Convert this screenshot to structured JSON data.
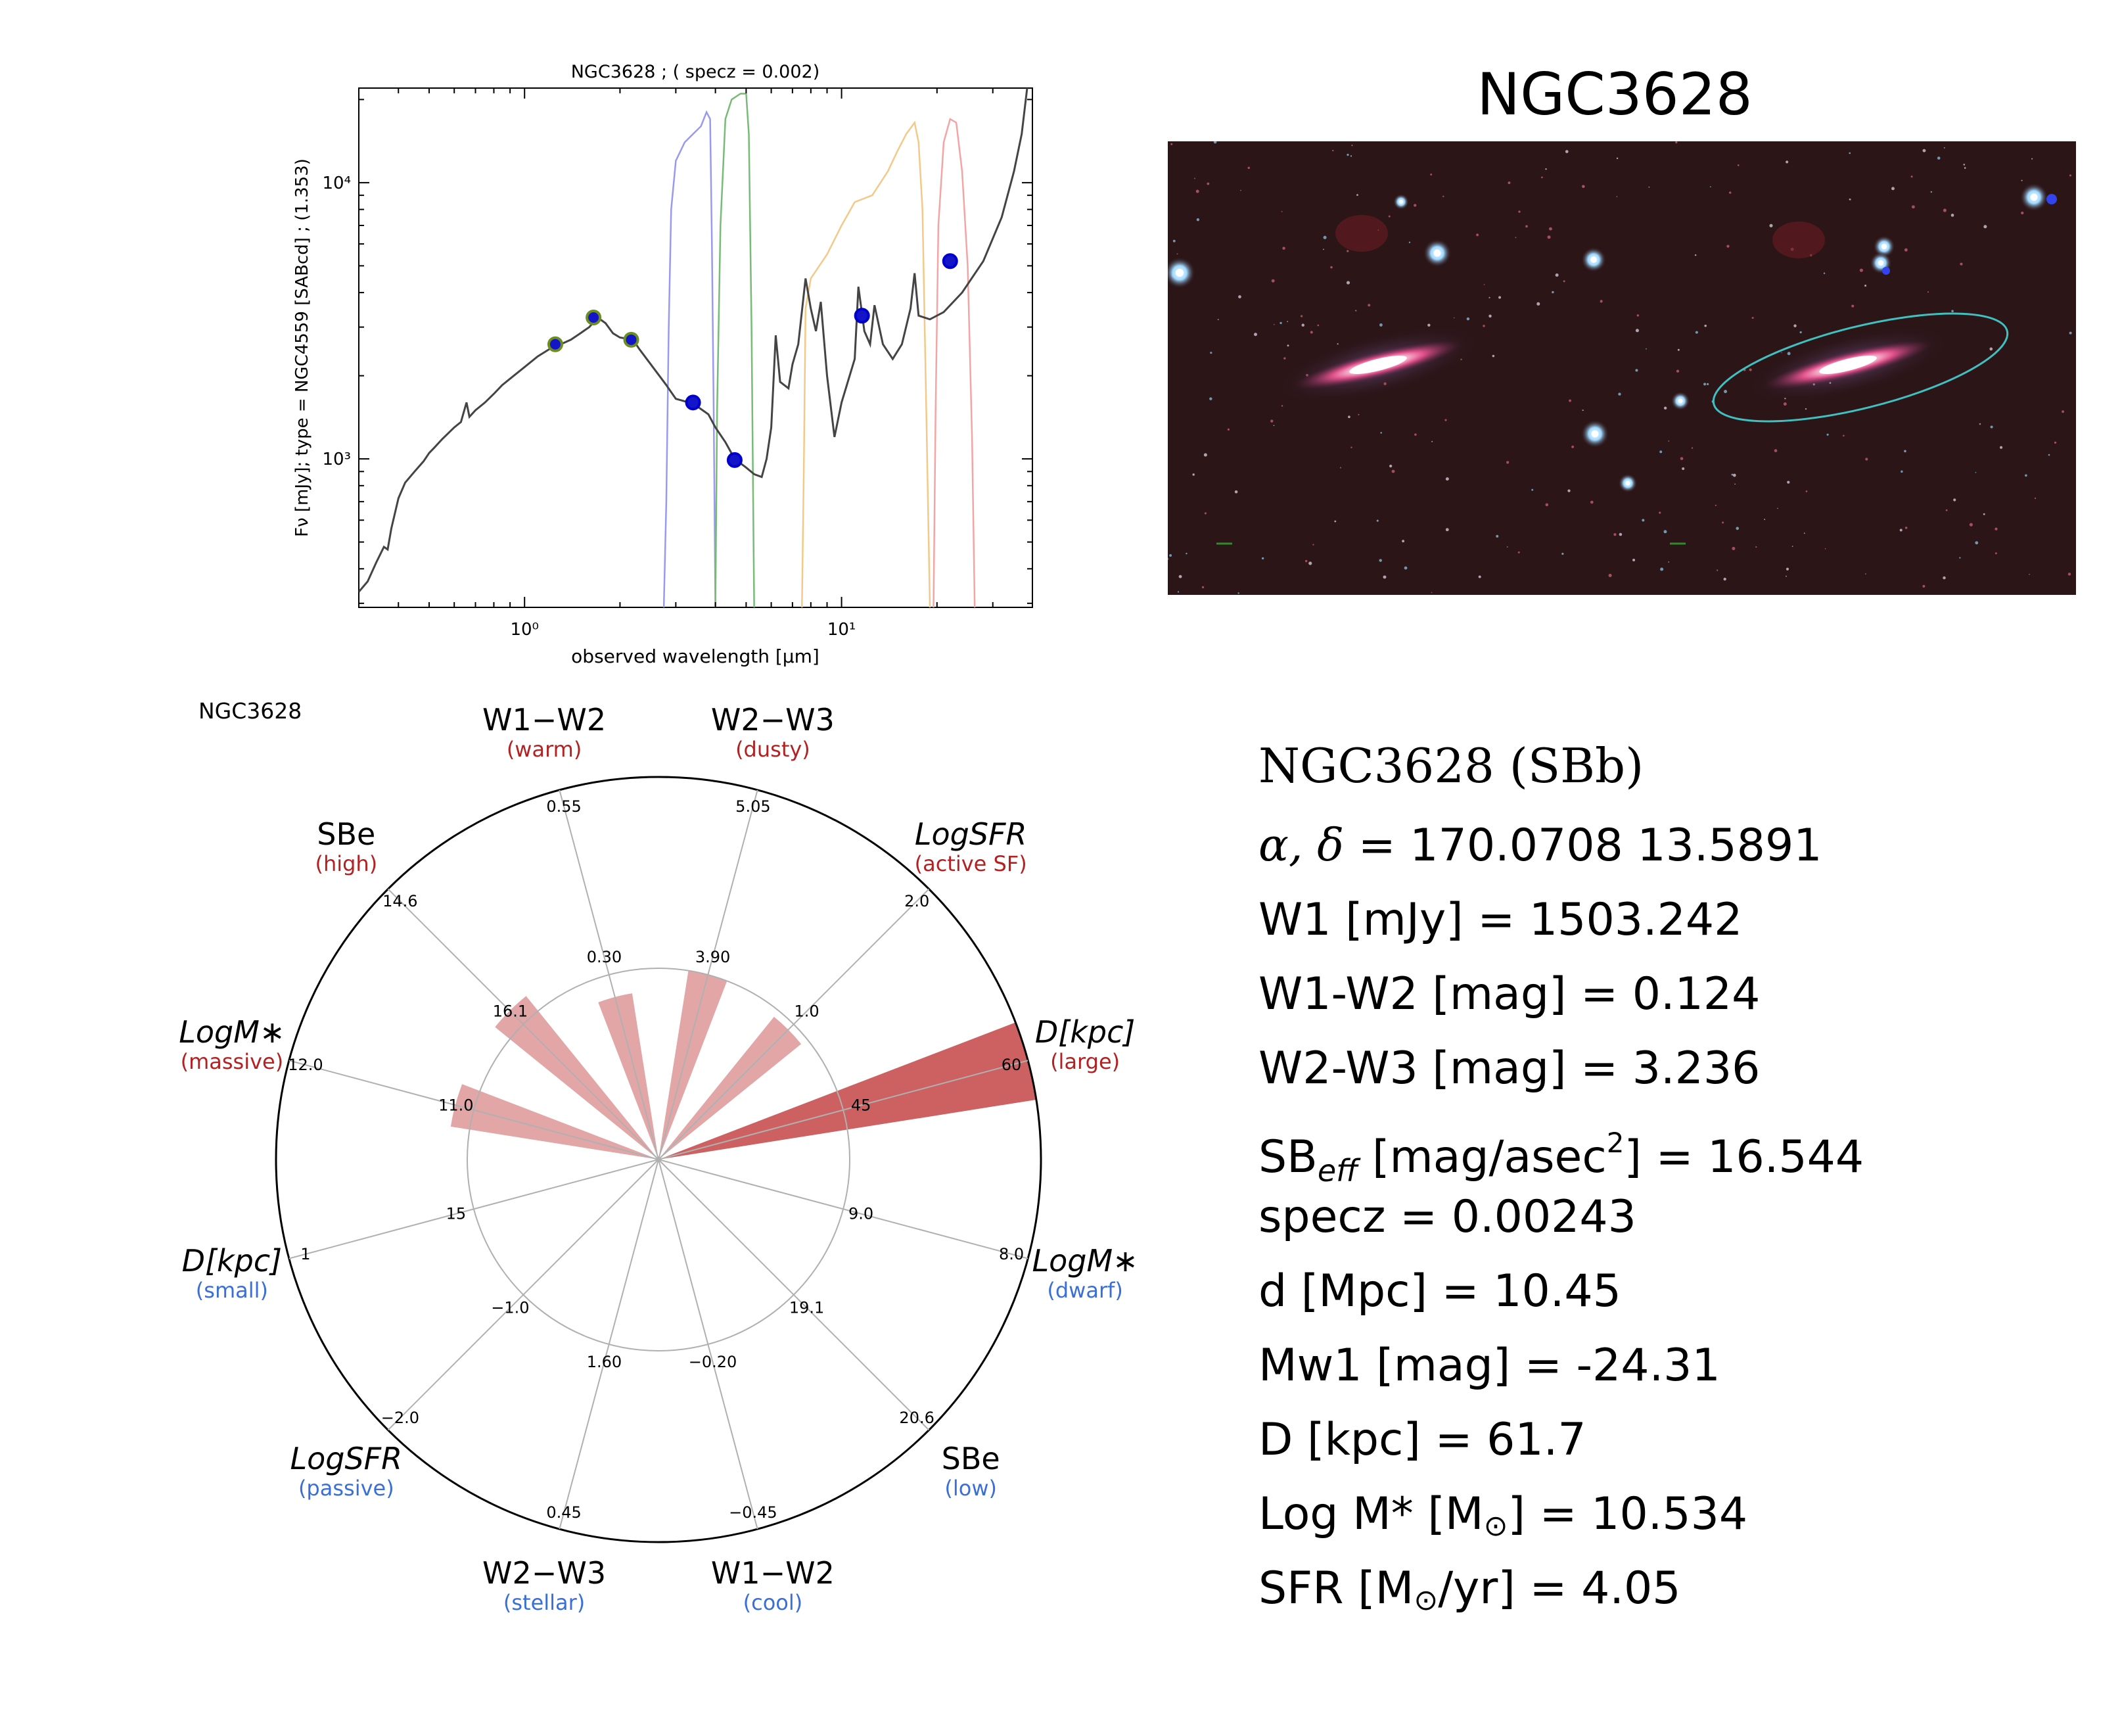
{
  "chart_data": [
    {
      "type": "line",
      "title": "NGC3628 ; ( specz = 0.002)",
      "xlabel": "observed wavelength [μm]",
      "ylabel": "Fν [mJy];  type = NGC4559 [SABcd] ; (1.353)",
      "xscale": "log",
      "yscale": "log",
      "xlim": [
        0.3,
        40
      ],
      "ylim": [
        290,
        22000
      ],
      "x_tick_labels": [
        {
          "x": 1,
          "label": "10⁰"
        },
        {
          "x": 10,
          "label": "10¹"
        }
      ],
      "y_tick_labels": [
        {
          "y": 1000,
          "label": "10³"
        },
        {
          "y": 10000,
          "label": "10⁴"
        }
      ],
      "series": [
        {
          "role": "template",
          "color": "#444444",
          "points": [
            [
              0.3,
              330
            ],
            [
              0.32,
              360
            ],
            [
              0.34,
              420
            ],
            [
              0.36,
              480
            ],
            [
              0.37,
              470
            ],
            [
              0.38,
              560
            ],
            [
              0.4,
              720
            ],
            [
              0.42,
              820
            ],
            [
              0.45,
              900
            ],
            [
              0.48,
              980
            ],
            [
              0.5,
              1050
            ],
            [
              0.52,
              1100
            ],
            [
              0.55,
              1180
            ],
            [
              0.6,
              1300
            ],
            [
              0.63,
              1360
            ],
            [
              0.656,
              1600
            ],
            [
              0.67,
              1420
            ],
            [
              0.7,
              1500
            ],
            [
              0.75,
              1600
            ],
            [
              0.8,
              1720
            ],
            [
              0.85,
              1850
            ],
            [
              0.9,
              1950
            ],
            [
              1.0,
              2150
            ],
            [
              1.1,
              2350
            ],
            [
              1.2,
              2500
            ],
            [
              1.3,
              2600
            ],
            [
              1.4,
              2700
            ],
            [
              1.5,
              2850
            ],
            [
              1.6,
              3000
            ],
            [
              1.7,
              3250
            ],
            [
              1.8,
              3100
            ],
            [
              1.9,
              2850
            ],
            [
              2.0,
              2750
            ],
            [
              2.2,
              2700
            ],
            [
              2.3,
              2500
            ],
            [
              2.5,
              2200
            ],
            [
              2.8,
              1850
            ],
            [
              3.0,
              1650
            ],
            [
              3.3,
              1600
            ],
            [
              3.5,
              1550
            ],
            [
              3.8,
              1450
            ],
            [
              4.0,
              1300
            ],
            [
              4.3,
              1150
            ],
            [
              4.6,
              1000
            ],
            [
              5.0,
              930
            ],
            [
              5.3,
              880
            ],
            [
              5.6,
              860
            ],
            [
              5.8,
              1000
            ],
            [
              6.0,
              1300
            ],
            [
              6.2,
              2800
            ],
            [
              6.4,
              1900
            ],
            [
              6.8,
              1800
            ],
            [
              7.0,
              2200
            ],
            [
              7.3,
              2600
            ],
            [
              7.7,
              4500
            ],
            [
              8.0,
              3500
            ],
            [
              8.3,
              2900
            ],
            [
              8.6,
              3700
            ],
            [
              9.0,
              2000
            ],
            [
              9.5,
              1200
            ],
            [
              10.0,
              1600
            ],
            [
              11.0,
              2300
            ],
            [
              11.3,
              4200
            ],
            [
              11.8,
              2900
            ],
            [
              12.3,
              2600
            ],
            [
              12.7,
              3600
            ],
            [
              13.5,
              2600
            ],
            [
              14.5,
              2300
            ],
            [
              15.5,
              2600
            ],
            [
              16.5,
              3500
            ],
            [
              17.0,
              4700
            ],
            [
              17.5,
              3300
            ],
            [
              19.0,
              3200
            ],
            [
              21.0,
              3400
            ],
            [
              24.0,
              4000
            ],
            [
              28.0,
              5200
            ],
            [
              32.0,
              7500
            ],
            [
              35.0,
              11000
            ],
            [
              37.0,
              15000
            ],
            [
              38.5,
              22000
            ]
          ]
        },
        {
          "role": "filter W1",
          "color": "#9999ee",
          "points": [
            [
              2.75,
              290
            ],
            [
              2.8,
              700
            ],
            [
              2.85,
              3000
            ],
            [
              2.9,
              8000
            ],
            [
              3.0,
              12000
            ],
            [
              3.2,
              14000
            ],
            [
              3.4,
              15000
            ],
            [
              3.6,
              16000
            ],
            [
              3.75,
              18000
            ],
            [
              3.85,
              17000
            ],
            [
              3.9,
              6000
            ],
            [
              3.95,
              1500
            ],
            [
              4.0,
              290
            ]
          ]
        },
        {
          "role": "filter W2",
          "color": "#77bb77",
          "points": [
            [
              4.0,
              290
            ],
            [
              4.05,
              1500
            ],
            [
              4.15,
              7000
            ],
            [
              4.3,
              17000
            ],
            [
              4.5,
              20000
            ],
            [
              4.8,
              21000
            ],
            [
              5.0,
              21000
            ],
            [
              5.1,
              15000
            ],
            [
              5.2,
              3000
            ],
            [
              5.3,
              290
            ]
          ]
        },
        {
          "role": "filter W3",
          "color": "#f3c98a",
          "points": [
            [
              7.5,
              290
            ],
            [
              7.6,
              900
            ],
            [
              7.7,
              3500
            ],
            [
              8.0,
              4500
            ],
            [
              9.0,
              5500
            ],
            [
              10.0,
              7000
            ],
            [
              11.0,
              8500
            ],
            [
              12.5,
              9000
            ],
            [
              14.0,
              11000
            ],
            [
              15.0,
              13000
            ],
            [
              16.0,
              15000
            ],
            [
              17.0,
              16500
            ],
            [
              17.5,
              14000
            ],
            [
              18.0,
              8000
            ],
            [
              18.5,
              1500
            ],
            [
              19.0,
              290
            ]
          ]
        },
        {
          "role": "filter W4",
          "color": "#f2a5a5",
          "points": [
            [
              19.5,
              290
            ],
            [
              19.8,
              1500
            ],
            [
              20.2,
              7000
            ],
            [
              21.0,
              14000
            ],
            [
              22.0,
              17000
            ],
            [
              23.0,
              16500
            ],
            [
              24.0,
              11000
            ],
            [
              25.0,
              5000
            ],
            [
              25.8,
              1200
            ],
            [
              26.3,
              290
            ]
          ]
        }
      ],
      "photometry": [
        {
          "x": 1.25,
          "y": 2600,
          "color": "#6b8e23"
        },
        {
          "x": 1.65,
          "y": 3250,
          "color": "#6b8e23"
        },
        {
          "x": 2.17,
          "y": 2700,
          "color": "#6b8e23"
        },
        {
          "x": 3.4,
          "y": 1600,
          "color": "#0000cc"
        },
        {
          "x": 4.6,
          "y": 990,
          "color": "#0000cc"
        },
        {
          "x": 11.6,
          "y": 3300,
          "color": "#0000cc"
        },
        {
          "x": 22.0,
          "y": 5200,
          "color": "#0000cc"
        }
      ]
    },
    {
      "type": "radar",
      "title": "NGC3628",
      "bar_color": "#c0393b",
      "axes": [
        {
          "label": "W1−W2",
          "sub": "(warm)",
          "sub_color": "#b22222",
          "ticks": [
            "0.30",
            "0.55"
          ],
          "value": 0.44
        },
        {
          "label": "W2−W3",
          "sub": "(dusty)",
          "sub_color": "#b22222",
          "ticks": [
            "3.90",
            "5.05"
          ],
          "value": 0.5
        },
        {
          "label": "LogSFR",
          "sub": "(active SF)",
          "sub_color": "#b22222",
          "ticks": [
            "1.0",
            "2.0"
          ],
          "value": 0.48
        },
        {
          "label": "D[kpc]",
          "sub": "(large)",
          "sub_color": "#b22222",
          "ticks": [
            "45",
            "60"
          ],
          "value": 1.0
        },
        {
          "label": "LogM∗",
          "sub": "(dwarf)",
          "sub_color": "#3a6fd8",
          "ticks": [
            "9.0",
            "8.0"
          ],
          "value": 0
        },
        {
          "label": "SBe",
          "sub": "(low)",
          "sub_color": "#3a6fd8",
          "ticks": [
            "19.1",
            "20.6"
          ],
          "value": 0
        },
        {
          "label": "W1−W2",
          "sub": "(cool)",
          "sub_color": "#3a6fd8",
          "ticks": [
            "−0.20",
            "−0.45"
          ],
          "value": 0
        },
        {
          "label": "W2−W3",
          "sub": "(stellar)",
          "sub_color": "#3a6fd8",
          "ticks": [
            "1.60",
            "0.45"
          ],
          "value": 0
        },
        {
          "label": "LogSFR",
          "sub": "(passive)",
          "sub_color": "#3a6fd8",
          "ticks": [
            "−1.0",
            "−2.0"
          ],
          "value": 0
        },
        {
          "label": "D[kpc]",
          "sub": "(small)",
          "sub_color": "#3a6fd8",
          "ticks": [
            "15",
            "1"
          ],
          "value": 0
        },
        {
          "label": "LogM∗",
          "sub": "(massive)",
          "sub_color": "#b22222",
          "ticks": [
            "11.0",
            "12.0"
          ],
          "value": 0.55
        },
        {
          "label": "SBe",
          "sub": "(high)",
          "sub_color": "#b22222",
          "ticks": [
            "16.1",
            "14.6"
          ],
          "value": 0.55
        }
      ]
    }
  ],
  "image_panel": {
    "title": "NGC3628",
    "aperture_color": "#40c0c0",
    "background_color": "#2a1416"
  },
  "info": {
    "title": "NGC3628  (SBb)",
    "ra_dec_value": " = 170.0708 13.5891",
    "w1": "W1 [mJy] = 1503.242",
    "w1w2": "W1-W2 [mag] = 0.124",
    "w2w3": "W2-W3 [mag] = 3.236",
    "sb_prefix": "SB",
    "sb_sub": "eff",
    "sb_mid": " [mag/asec",
    "sb_sup": "2",
    "sb_suffix": "] = 16.544",
    "specz": "specz = 0.00243",
    "d": "d [Mpc] = 10.45",
    "mw1": "Mw1 [mag] = -24.31",
    "Dkpc": "D [kpc] = 61.7",
    "logm_prefix": "Log M* [M",
    "logm_suffix": "] = 10.534",
    "sfr_prefix": "SFR [M",
    "sfr_suffix": "/yr] = 4.05",
    "odot": "⊙"
  }
}
